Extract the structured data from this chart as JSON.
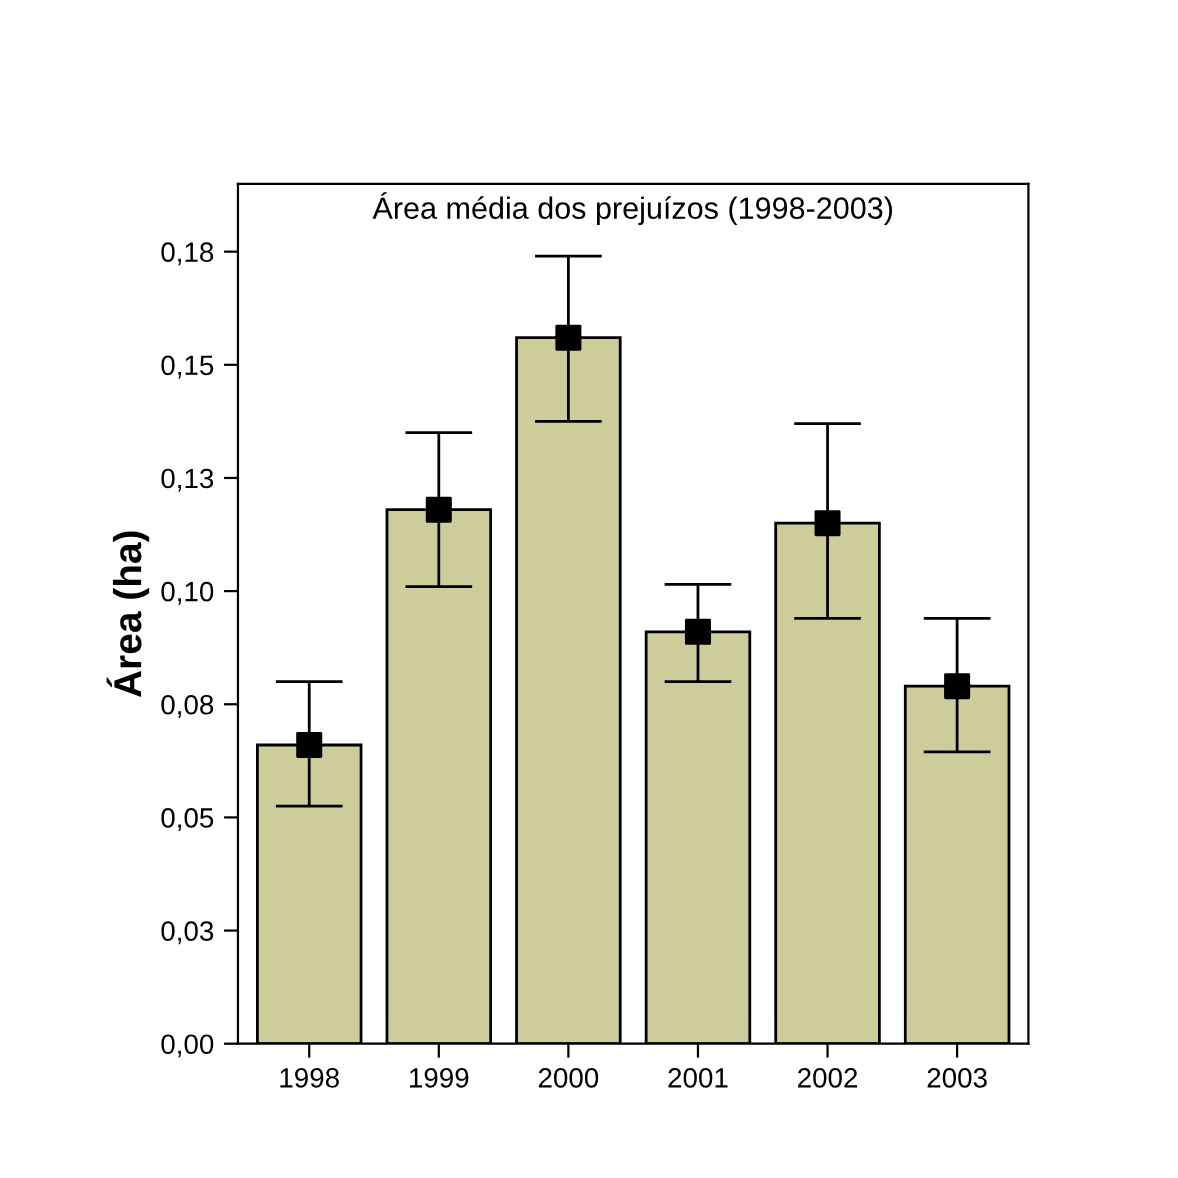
{
  "chart_data": {
    "type": "bar",
    "title": "Área média dos prejuízos (1998-2003)",
    "ylabel": "Área (ha)",
    "categories": [
      "1998",
      "1999",
      "2000",
      "2001",
      "2002",
      "2003"
    ],
    "series": [
      {
        "color": "#cdcd9c",
        "values": [
          0.066,
          0.118,
          0.156,
          0.091,
          0.115,
          0.079
        ],
        "errors": [
          [
            0.0525,
            0.08
          ],
          [
            0.101,
            0.135
          ],
          [
            0.1375,
            0.174
          ],
          [
            0.08,
            0.1015
          ],
          [
            0.094,
            0.137
          ],
          [
            0.0645,
            0.094
          ]
        ]
      },
      {
        "type": "scatter",
        "color": "#000000",
        "marker": "square",
        "values": [
          0.066,
          0.118,
          0.156,
          0.091,
          0.115,
          0.079
        ]
      }
    ],
    "ylim": [
      0,
      0.19
    ],
    "yticks": [
      {
        "value": 0,
        "label": "0,00"
      },
      {
        "value": 0.025,
        "label": "0,03"
      },
      {
        "value": 0.05,
        "label": "0,05"
      },
      {
        "value": 0.075,
        "label": "0,08"
      },
      {
        "value": 0.1,
        "label": "0,10"
      },
      {
        "value": 0.125,
        "label": "0,13"
      },
      {
        "value": 0.15,
        "label": "0,15"
      },
      {
        "value": 0.175,
        "label": "0,18"
      }
    ],
    "grid": false,
    "legend": false
  }
}
